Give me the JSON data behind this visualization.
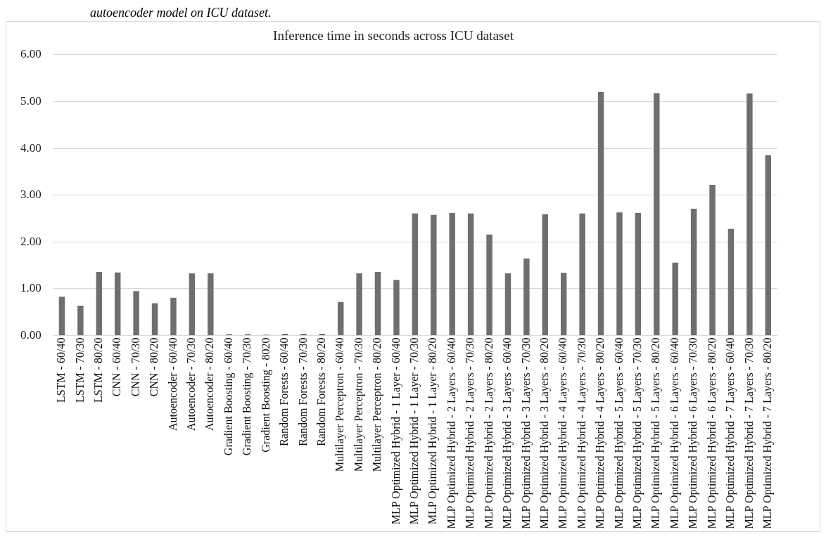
{
  "chart_data": {
    "type": "bar",
    "title": "Inference time in seconds across ICU dataset",
    "annotations": [
      "autoencoder model on ICU dataset."
    ],
    "categories": [
      "LSTM - 60/40",
      "LSTM - 70/30",
      "LSTM - 80/20",
      "CNN - 60/40",
      "CNN - 70/30",
      "CNN - 80/20",
      "Autoencoder - 60/40",
      "Autoencoder - 70/30",
      "Autoencoder - 80/20",
      "Gradient Boosting - 60/40",
      "Gradient Boosting - 70/30",
      "Gradient Boosting - 8020",
      "Random Forests - 60/40",
      "Random Forests - 70/30",
      "Random Forests - 80/20",
      "Multilayer Perceptron - 60/40",
      "Multilayer Perceptron - 70/30",
      "Multilayer Perceptron - 80/20",
      "MLP Optimized Hybrid - 1 Layer - 60/40",
      "MLP Optimized Hybrid - 1 Layer - 70/30",
      "MLP Optimized Hybrid - 1 Layer - 80/20",
      "MLP Optimized Hybrid - 2 Layers - 60/40",
      "MLP Optimized Hybrid - 2 Layers - 70/30",
      "MLP Optimized Hybrid - 2 Layers - 80/20",
      "MLP Optimized Hybrid - 3 Layers - 60/40",
      "MLP Optimized Hybrid - 3 Layers - 70/30",
      "MLP Optimized Hybrid - 3 Layers - 80/20",
      "MLP Optimized Hybrid - 4 Layers - 60/40",
      "MLP Optimized Hybrid - 4 Layers - 70/30",
      "MLP Optimized Hybrid - 4 Layers - 80/20",
      "MLP Optimized Hybrid - 5 Layers - 60/40",
      "MLP Optimized Hybrid - 5 Layers - 70/30",
      "MLP Optimized Hybrid - 5 Layers - 80/20",
      "MLP Optimized Hybrid - 6 Layers - 60/40",
      "MLP Optimized Hybrid - 6 Layers - 70/30",
      "MLP Optimized Hybrid - 6 Layers - 80/20",
      "MLP Optimized Hybrid - 7 Layers - 60/40",
      "MLP Optimized Hybrid - 7 Layers - 70/30",
      "MLP Optimized Hybrid - 7 Layers - 80/20"
    ],
    "values": [
      0.83,
      0.64,
      1.36,
      1.35,
      0.95,
      0.69,
      0.81,
      1.33,
      1.33,
      0.03,
      0.03,
      0.02,
      0.04,
      0.04,
      0.04,
      0.72,
      1.33,
      1.36,
      1.19,
      2.61,
      2.58,
      2.62,
      2.61,
      2.16,
      1.33,
      1.65,
      2.59,
      1.34,
      2.61,
      5.2,
      2.63,
      2.62,
      5.18,
      1.56,
      2.71,
      3.22,
      2.28,
      5.17,
      3.85
    ],
    "color": "#6f6f6f",
    "ylim": [
      0,
      6
    ],
    "yticks": [
      {
        "value": 0,
        "label": "0.00"
      },
      {
        "value": 1,
        "label": "1.00"
      },
      {
        "value": 2,
        "label": "2.00"
      },
      {
        "value": 3,
        "label": "3.00"
      },
      {
        "value": 4,
        "label": "4.00"
      },
      {
        "value": 5,
        "label": "5.00"
      },
      {
        "value": 6,
        "label": "6.00"
      }
    ],
    "grid": "y",
    "legend": false
  }
}
